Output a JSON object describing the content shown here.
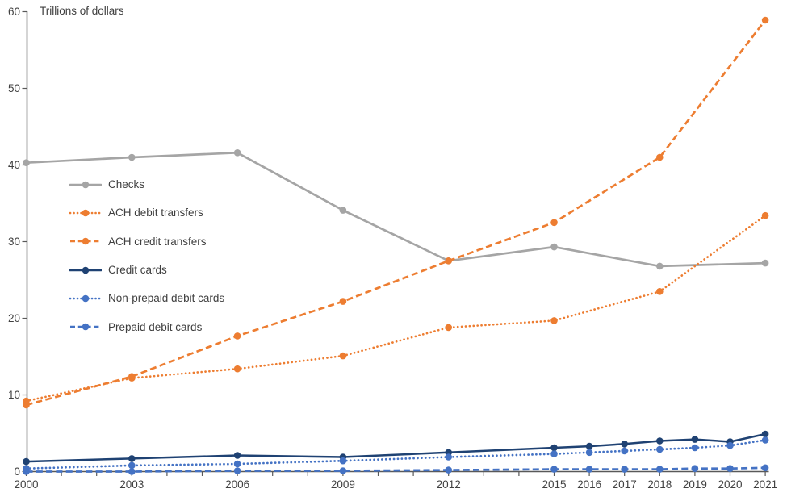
{
  "title": "Trillions of dollars",
  "colors": {
    "gray": "#A5A5A5",
    "orange": "#ED7D31",
    "navy": "#1F4273",
    "blue": "#4472C4",
    "axis": "#595959",
    "text": "#404040"
  },
  "legend": {
    "position": "inside-left"
  },
  "chart_data": {
    "type": "line",
    "title": "Trillions of dollars",
    "ylabel": "Trillions of dollars",
    "xlabel": "",
    "grid": false,
    "legend_position": "inside-left",
    "x_axis": {
      "min": 2000,
      "max": 2021,
      "minor_tick_every_year": true,
      "labeled_years": [
        2000,
        2003,
        2006,
        2009,
        2012,
        2015,
        2016,
        2017,
        2018,
        2019,
        2020,
        2021
      ]
    },
    "y_axis": {
      "min": 0,
      "max": 60,
      "ticks": [
        0,
        10,
        20,
        30,
        40,
        50,
        60
      ]
    },
    "series": [
      {
        "name": "Checks",
        "id": "checks",
        "color": "#A5A5A5",
        "style": "solid",
        "x": [
          2000,
          2003,
          2006,
          2009,
          2012,
          2015,
          2018,
          2021
        ],
        "y": [
          40.3,
          41.0,
          41.6,
          34.1,
          27.5,
          29.3,
          26.8,
          27.2
        ]
      },
      {
        "name": "ACH debit transfers",
        "id": "ach-debit-transfers",
        "color": "#ED7D31",
        "style": "dotted",
        "x": [
          2000,
          2003,
          2006,
          2009,
          2012,
          2015,
          2018,
          2021
        ],
        "y": [
          9.2,
          12.2,
          13.4,
          15.1,
          18.8,
          19.7,
          23.5,
          33.4
        ]
      },
      {
        "name": "ACH credit transfers",
        "id": "ach-credit-transfers",
        "color": "#ED7D31",
        "style": "dashed",
        "x": [
          2000,
          2003,
          2006,
          2009,
          2012,
          2015,
          2018,
          2021
        ],
        "y": [
          8.7,
          12.4,
          17.7,
          22.2,
          27.5,
          32.5,
          41.0,
          58.9
        ]
      },
      {
        "name": "Credit cards",
        "id": "credit-cards",
        "color": "#1F4273",
        "style": "solid",
        "x": [
          2000,
          2003,
          2006,
          2009,
          2012,
          2015,
          2016,
          2017,
          2018,
          2019,
          2020,
          2021
        ],
        "y": [
          1.3,
          1.7,
          2.1,
          1.9,
          2.5,
          3.1,
          3.3,
          3.6,
          4.0,
          4.2,
          3.9,
          4.9
        ]
      },
      {
        "name": "Non-prepaid debit cards",
        "id": "non-prepaid-debit-cards",
        "color": "#4472C4",
        "style": "dotted",
        "x": [
          2000,
          2003,
          2006,
          2009,
          2012,
          2015,
          2016,
          2017,
          2018,
          2019,
          2020,
          2021
        ],
        "y": [
          0.4,
          0.8,
          1.0,
          1.4,
          1.9,
          2.3,
          2.5,
          2.7,
          2.9,
          3.1,
          3.4,
          4.1
        ]
      },
      {
        "name": "Prepaid debit cards",
        "id": "prepaid-debit-cards",
        "color": "#4472C4",
        "style": "dashed",
        "x": [
          2000,
          2003,
          2006,
          2009,
          2012,
          2015,
          2016,
          2017,
          2018,
          2019,
          2020,
          2021
        ],
        "y": [
          0.0,
          0.0,
          0.1,
          0.1,
          0.2,
          0.3,
          0.3,
          0.3,
          0.3,
          0.4,
          0.4,
          0.5
        ]
      }
    ]
  }
}
